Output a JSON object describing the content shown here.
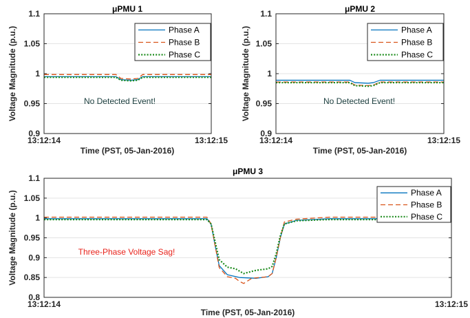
{
  "chart_data": [
    {
      "type": "line",
      "title": "μPMU 1",
      "xlabel": "Time (PST, 05-Jan-2016)",
      "ylabel": "Voltage Magnitude (p.u.)",
      "xlim": [
        0,
        1
      ],
      "ylim": [
        0.9,
        1.1
      ],
      "x_tick_labels": [
        "13:12:14",
        "13:12:15"
      ],
      "y_ticks": [
        0.9,
        0.95,
        1,
        1.05,
        1.1
      ],
      "y_tick_labels": [
        "0.9",
        "0.95",
        "1",
        "1.05",
        "1.1"
      ],
      "grid": "horizontal",
      "legend_position": "top-right",
      "annotation": {
        "text": "No Detected Event!",
        "color": "#1a3d3d"
      },
      "series": [
        {
          "name": "Phase A",
          "color": "#0072BD",
          "dash": "solid",
          "x": [
            0,
            0.43,
            0.46,
            0.52,
            0.56,
            0.59,
            1
          ],
          "y": [
            0.995,
            0.995,
            0.99,
            0.989,
            0.99,
            0.995,
            0.995
          ]
        },
        {
          "name": "Phase B",
          "color": "#D95319",
          "dash": "dashed",
          "x": [
            0,
            0.43,
            0.46,
            0.52,
            0.56,
            0.59,
            1
          ],
          "y": [
            0.9985,
            0.9985,
            0.992,
            0.991,
            0.992,
            0.9985,
            0.9985
          ]
        },
        {
          "name": "Phase C",
          "color": "#1a8a1a",
          "dash": "dotted",
          "x": [
            0,
            0.43,
            0.46,
            0.52,
            0.56,
            0.59,
            1
          ],
          "y": [
            0.994,
            0.994,
            0.989,
            0.988,
            0.989,
            0.994,
            0.994
          ]
        }
      ]
    },
    {
      "type": "line",
      "title": "μPMU 2",
      "xlabel": "Time (PST, 05-Jan-2016)",
      "ylabel": "Voltage Magnitude (p.u.)",
      "xlim": [
        0,
        1
      ],
      "ylim": [
        0.9,
        1.1
      ],
      "x_tick_labels": [
        "13:12:14",
        "13:12:15"
      ],
      "y_ticks": [
        0.9,
        0.95,
        1,
        1.05,
        1.1
      ],
      "y_tick_labels": [
        "0.9",
        "0.95",
        "1",
        "1.05",
        "1.1"
      ],
      "grid": "horizontal",
      "legend_position": "top-right",
      "annotation": {
        "text": "No Detected Event!",
        "color": "#1a3d3d"
      },
      "series": [
        {
          "name": "Phase A",
          "color": "#0072BD",
          "dash": "solid",
          "x": [
            0,
            0.44,
            0.47,
            0.55,
            0.58,
            0.62,
            1
          ],
          "y": [
            0.989,
            0.989,
            0.985,
            0.984,
            0.985,
            0.989,
            0.989
          ]
        },
        {
          "name": "Phase B",
          "color": "#D95319",
          "dash": "dashed",
          "x": [
            0,
            0.44,
            0.47,
            0.55,
            0.58,
            0.62,
            1
          ],
          "y": [
            0.986,
            0.986,
            0.981,
            0.98,
            0.981,
            0.986,
            0.986
          ]
        },
        {
          "name": "Phase C",
          "color": "#1a8a1a",
          "dash": "dotted",
          "x": [
            0,
            0.44,
            0.47,
            0.55,
            0.58,
            0.62,
            1
          ],
          "y": [
            0.985,
            0.985,
            0.98,
            0.979,
            0.98,
            0.985,
            0.985
          ]
        }
      ]
    },
    {
      "type": "line",
      "title": "μPMU 3",
      "xlabel": "Time (PST, 05-Jan-2016)",
      "ylabel": "Voltage Magnitude (p.u.)",
      "xlim": [
        0,
        1
      ],
      "ylim": [
        0.8,
        1.1
      ],
      "x_tick_labels": [
        "13:12:14",
        "13:12:15"
      ],
      "y_ticks": [
        0.8,
        0.85,
        0.9,
        0.95,
        1,
        1.05,
        1.1
      ],
      "y_tick_labels": [
        "0.8",
        "0.85",
        "0.9",
        "0.95",
        "1",
        "1.05",
        "1.1"
      ],
      "grid": "horizontal",
      "legend_position": "top-right",
      "annotation": {
        "text": "Three-Phase Voltage Sag!",
        "color": "#e8231b"
      },
      "series": [
        {
          "name": "Phase A",
          "color": "#0072BD",
          "dash": "solid",
          "x": [
            0,
            0.4,
            0.41,
            0.42,
            0.43,
            0.45,
            0.48,
            0.52,
            0.55,
            0.56,
            0.57,
            0.58,
            0.59,
            0.62,
            0.7,
            1
          ],
          "y": [
            0.998,
            0.998,
            0.985,
            0.93,
            0.88,
            0.857,
            0.85,
            0.848,
            0.852,
            0.86,
            0.9,
            0.95,
            0.985,
            0.994,
            0.998,
            0.998
          ]
        },
        {
          "name": "Phase B",
          "color": "#D95319",
          "dash": "dashed",
          "x": [
            0,
            0.4,
            0.41,
            0.42,
            0.43,
            0.45,
            0.47,
            0.48,
            0.49,
            0.51,
            0.53,
            0.55,
            0.56,
            0.57,
            0.58,
            0.59,
            0.62,
            0.7,
            1
          ],
          "y": [
            1.002,
            1.002,
            0.985,
            0.93,
            0.875,
            0.852,
            0.848,
            0.84,
            0.835,
            0.848,
            0.85,
            0.852,
            0.86,
            0.9,
            0.95,
            0.99,
            0.997,
            1.002,
            1.002
          ]
        },
        {
          "name": "Phase C",
          "color": "#1a8a1a",
          "dash": "dotted",
          "x": [
            0,
            0.4,
            0.41,
            0.42,
            0.43,
            0.45,
            0.47,
            0.49,
            0.52,
            0.55,
            0.56,
            0.57,
            0.58,
            0.59,
            0.62,
            0.7,
            1
          ],
          "y": [
            0.996,
            0.996,
            0.985,
            0.94,
            0.895,
            0.876,
            0.872,
            0.86,
            0.868,
            0.872,
            0.878,
            0.91,
            0.955,
            0.985,
            0.993,
            0.996,
            0.996
          ]
        }
      ]
    }
  ]
}
